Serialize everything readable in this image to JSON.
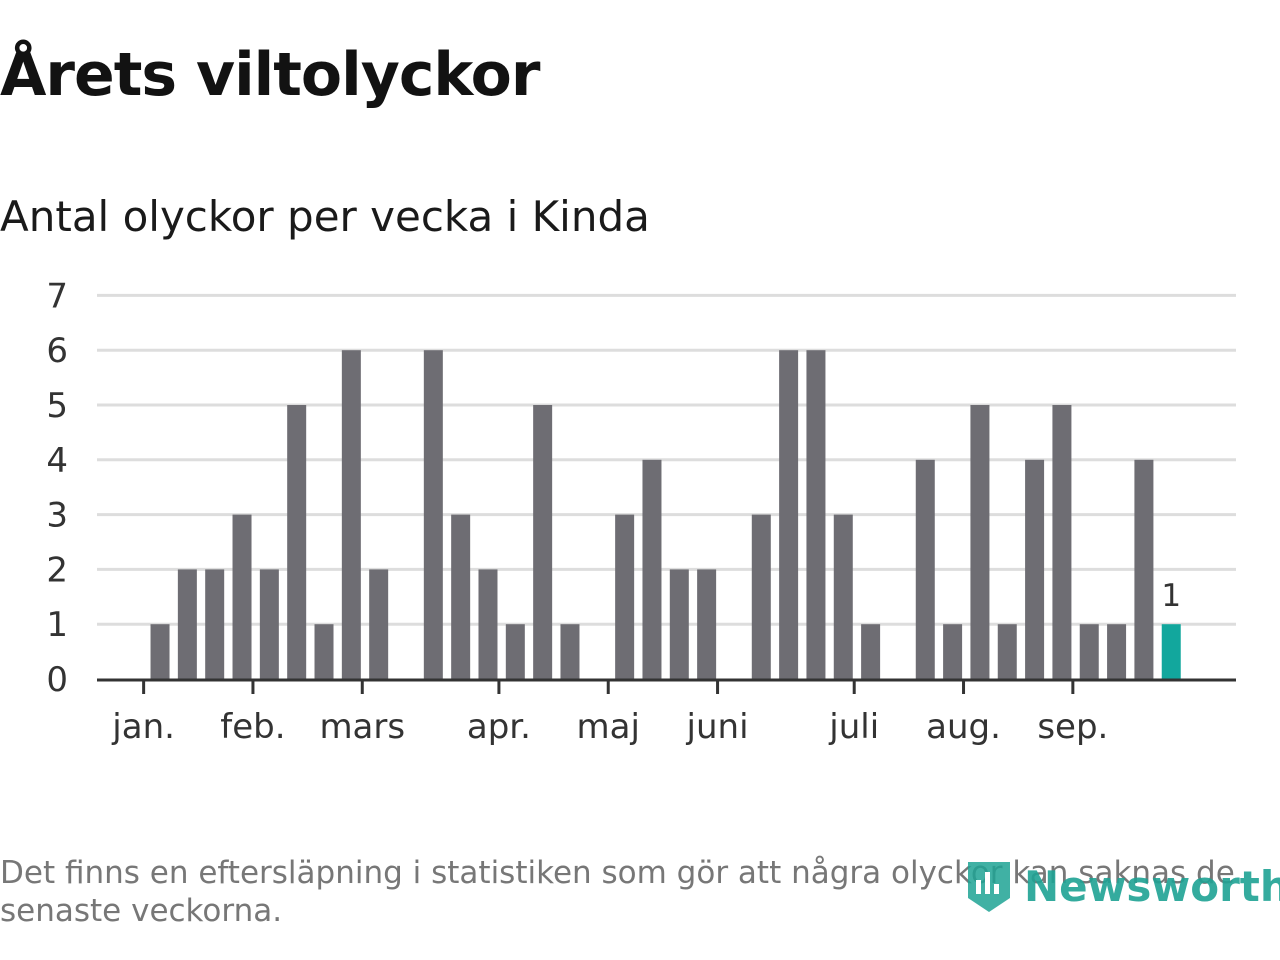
{
  "title": "Årets viltolyckor",
  "subtitle": "Antal olyckor per vecka i Kinda",
  "footnote": "Det finns en eftersläpning i statistiken som gör att några olyckor kan saknas de senaste veckorna.",
  "logo": {
    "text": "Newsworthy",
    "icon": "newsworthy-logo-icon"
  },
  "colors": {
    "bar": "#6e6d73",
    "highlight": "#12a79d",
    "grid": "#dddddd",
    "axis": "#333333"
  },
  "chart_data": {
    "type": "bar",
    "title": "Antal olyckor per vecka i Kinda",
    "xlabel": "",
    "ylabel": "",
    "ylim": [
      0,
      7
    ],
    "yticks": [
      0,
      1,
      2,
      3,
      4,
      5,
      6,
      7
    ],
    "grid": true,
    "weeks": [
      1,
      2,
      3,
      4,
      5,
      6,
      7,
      8,
      9,
      10,
      11,
      12,
      13,
      14,
      15,
      16,
      17,
      18,
      19,
      20,
      21,
      22,
      23,
      24,
      25,
      26,
      27,
      28,
      29,
      30,
      31,
      32,
      33,
      34,
      35,
      36,
      37,
      38,
      39,
      40
    ],
    "values": [
      0,
      1,
      2,
      2,
      3,
      2,
      5,
      1,
      6,
      2,
      0,
      6,
      3,
      2,
      1,
      5,
      1,
      0,
      3,
      4,
      2,
      2,
      0,
      3,
      6,
      6,
      3,
      1,
      0,
      4,
      1,
      5,
      1,
      4,
      5,
      1,
      1,
      4,
      1,
      0
    ],
    "highlight_index": 38,
    "highlight_label": "1",
    "month_ticks": [
      {
        "label": "jan.",
        "week": 1.4
      },
      {
        "label": "feb.",
        "week": 5.4
      },
      {
        "label": "mars",
        "week": 9.4
      },
      {
        "label": "apr.",
        "week": 14.4
      },
      {
        "label": "maj",
        "week": 18.4
      },
      {
        "label": "juni",
        "week": 22.4
      },
      {
        "label": "juli",
        "week": 27.4
      },
      {
        "label": "aug.",
        "week": 31.4
      },
      {
        "label": "sep.",
        "week": 35.4
      }
    ]
  }
}
